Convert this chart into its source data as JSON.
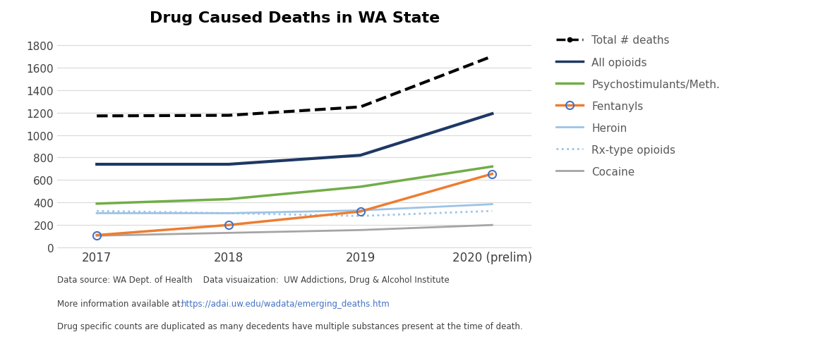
{
  "title": "Drug Caused Deaths in WA State",
  "years": [
    "2017",
    "2018",
    "2019",
    "2020 (prelim)"
  ],
  "series": {
    "Total # deaths": {
      "values": [
        1170,
        1175,
        1250,
        1700
      ],
      "color": "#000000",
      "linestyle": "--",
      "linewidth": 3,
      "marker": null,
      "markercolor": null,
      "zorder": 5
    },
    "All opioids": {
      "values": [
        740,
        740,
        820,
        1190
      ],
      "color": "#1f3864",
      "linestyle": "-",
      "linewidth": 3,
      "marker": null,
      "markercolor": null,
      "zorder": 4
    },
    "Psychostimulants/Meth.": {
      "values": [
        390,
        430,
        540,
        720
      ],
      "color": "#70ad47",
      "linestyle": "-",
      "linewidth": 2.5,
      "marker": null,
      "markercolor": null,
      "zorder": 3
    },
    "Fentanyls": {
      "values": [
        110,
        200,
        320,
        655
      ],
      "color": "#ed7d31",
      "linestyle": "-",
      "linewidth": 2.5,
      "marker": "o",
      "markercolor": "#4472c4",
      "zorder": 6
    },
    "Heroin": {
      "values": [
        305,
        305,
        330,
        385
      ],
      "color": "#9dc3e6",
      "linestyle": "-",
      "linewidth": 2,
      "marker": null,
      "markercolor": null,
      "zorder": 2
    },
    "Rx-type opioids": {
      "values": [
        325,
        305,
        280,
        325
      ],
      "color": "#9dc3e6",
      "linestyle": ":",
      "linewidth": 2,
      "marker": null,
      "markercolor": null,
      "zorder": 2
    },
    "Cocaine": {
      "values": [
        105,
        130,
        155,
        200
      ],
      "color": "#a5a5a5",
      "linestyle": "-",
      "linewidth": 2,
      "marker": null,
      "markercolor": null,
      "zorder": 1
    }
  },
  "ylim": [
    0,
    1900
  ],
  "yticks": [
    0,
    200,
    400,
    600,
    800,
    1000,
    1200,
    1400,
    1600,
    1800
  ],
  "footnote_line1": "Data source: WA Dept. of Health    Data visuaization:  UW Addictions, Drug & Alcohol Institute",
  "footnote_prefix2": "More information available at:  ",
  "footnote_url": "https://adai.uw.edu/wadata/emerging_deaths.htm",
  "footnote_line3": "Drug specific counts are duplicated as many decedents have multiple substances present at the time of death.",
  "background_color": "#ffffff",
  "grid_color": "#d9d9d9",
  "legend_text_color": "#595959"
}
